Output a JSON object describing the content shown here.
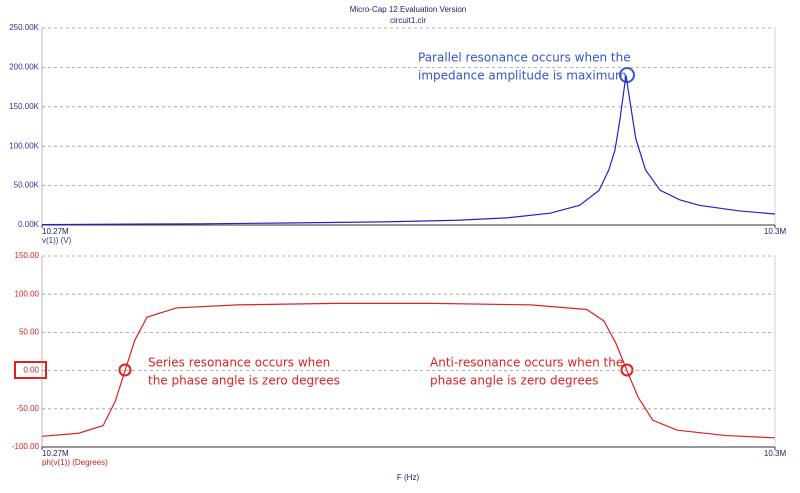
{
  "chart_data": [
    {
      "type": "line",
      "title": "Micro-Cap 12 Evaluation Version",
      "subtitle": "circuit1.cir",
      "ylabel": "v(1)) (V)",
      "color": "#2222cc",
      "x": [
        10270000,
        10273000,
        10276500,
        10280000,
        10284000,
        10287000,
        10289000,
        10290800,
        10292000,
        10292800,
        10293200,
        10293450,
        10293650,
        10293900,
        10294150,
        10294300,
        10294700,
        10295300,
        10296100,
        10296900,
        10298500,
        10300000
      ],
      "values": [
        500,
        1000,
        1500,
        2500,
        4000,
        6000,
        9000,
        15000,
        25000,
        44000,
        70000,
        95000,
        133000,
        190000,
        140000,
        110000,
        70000,
        44000,
        32000,
        25000,
        18000,
        14000
      ],
      "xlim": [
        10270000,
        10300000
      ],
      "xticks": [
        {
          "value": 10270000,
          "label": "10.27M"
        },
        {
          "value": 10300000,
          "label": "10.3M"
        }
      ],
      "ylim": [
        0,
        250000
      ],
      "yticks": [
        {
          "value": 0,
          "label": "0.00K"
        },
        {
          "value": 50000,
          "label": "50.00K"
        },
        {
          "value": 100000,
          "label": "100.00K"
        },
        {
          "value": 150000,
          "label": "150.00K"
        },
        {
          "value": 200000,
          "label": "200.00K"
        },
        {
          "value": 250000,
          "label": "250.00K"
        }
      ],
      "grid": true,
      "annotations": [
        [
          "Parallel resonance occurs when the",
          "impedance amplitude is maximum"
        ]
      ]
    },
    {
      "type": "line",
      "ylabel": "ph(v(1)) (Degrees)",
      "xlabel": "F (Hz)",
      "color": "#dd2222",
      "x": [
        10270000,
        10271500,
        10272500,
        10273000,
        10273400,
        10273800,
        10274300,
        10275500,
        10278000,
        10282000,
        10286000,
        10290000,
        10292300,
        10293000,
        10293500,
        10293940,
        10294400,
        10295000,
        10296000,
        10298000,
        10300000
      ],
      "values": [
        -86,
        -82,
        -72,
        -40,
        0,
        40,
        70,
        82,
        86,
        88,
        88,
        86,
        80,
        65,
        35,
        0,
        -35,
        -65,
        -78,
        -85,
        -88
      ],
      "xlim": [
        10270000,
        10300000
      ],
      "xticks": [
        {
          "value": 10270000,
          "label": "10.27M"
        },
        {
          "value": 10300000,
          "label": "10.3M"
        }
      ],
      "ylim": [
        -100,
        150
      ],
      "yticks": [
        {
          "value": -100,
          "label": "-100.00"
        },
        {
          "value": -50,
          "label": "-50.00"
        },
        {
          "value": 0,
          "label": "0.00"
        },
        {
          "value": 50,
          "label": "50.00"
        },
        {
          "value": 100,
          "label": "100.00"
        },
        {
          "value": 150,
          "label": "150.00"
        }
      ],
      "grid": true,
      "annotations": [
        [
          "Series resonance occurs when",
          "the phase angle is zero degrees"
        ],
        [
          "Anti-resonance occurs when the",
          "phase angle is zero degrees"
        ]
      ]
    }
  ]
}
